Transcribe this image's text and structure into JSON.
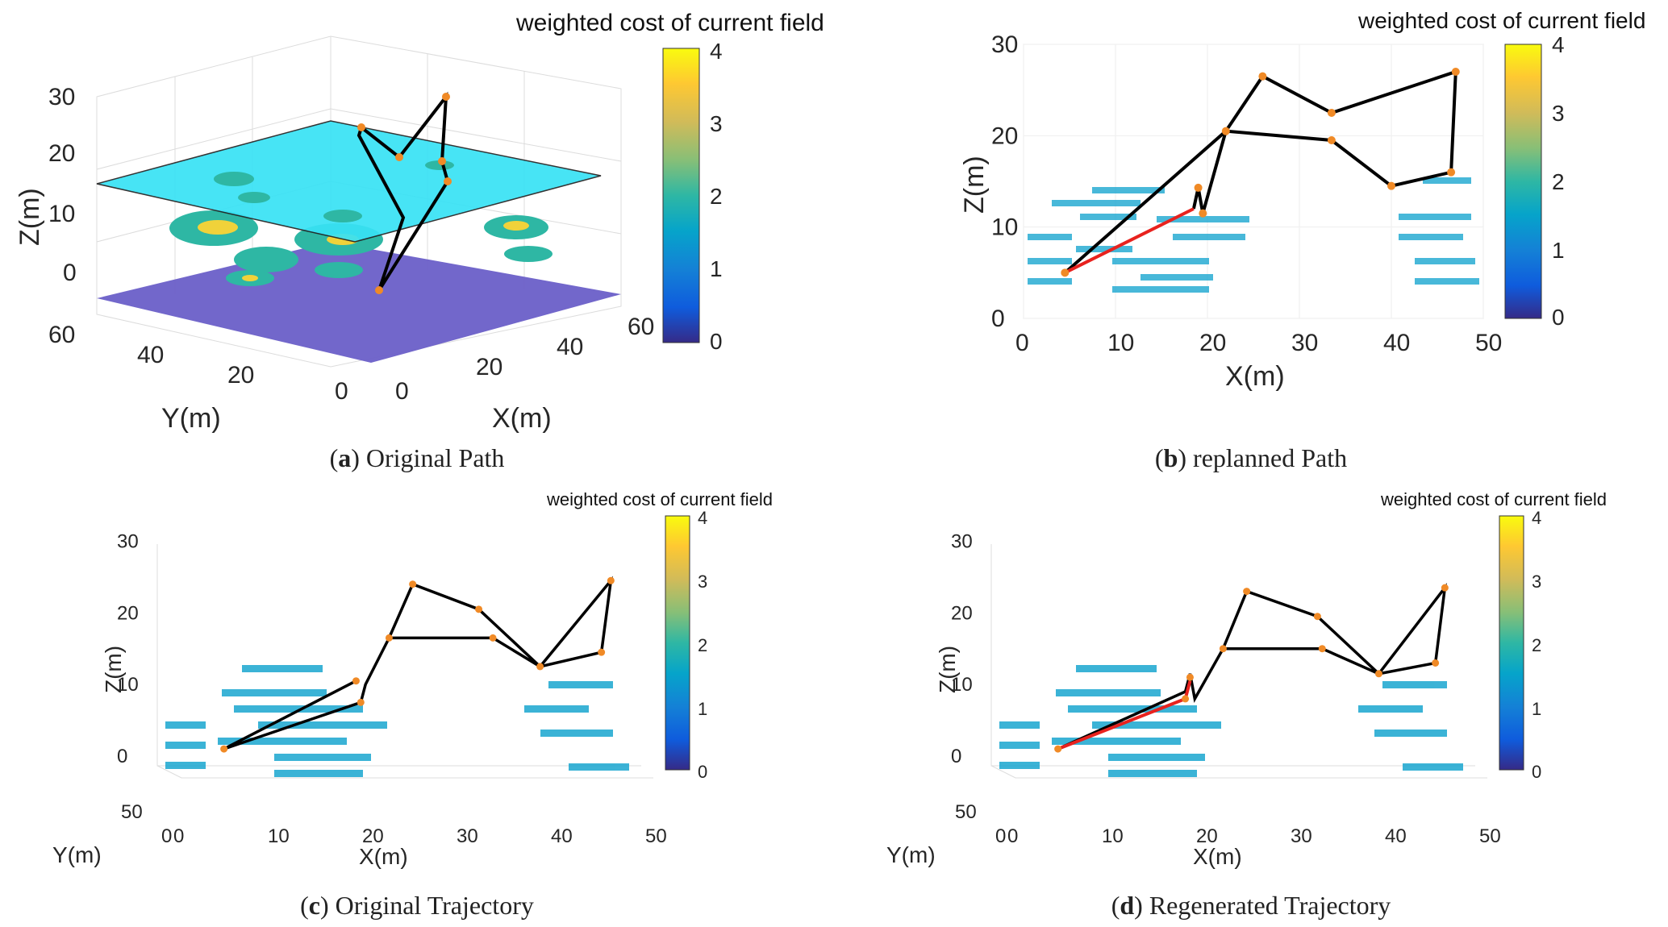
{
  "figure": {
    "colorbar_stops": [
      "#352a87",
      "#0f5cdd",
      "#1481d6",
      "#06a4ca",
      "#2eb7a4",
      "#87bf77",
      "#d1bb59",
      "#fec832",
      "#f9fb0e"
    ]
  },
  "chart_data": [
    {
      "id": "a",
      "type": "scatter",
      "subtype": "3d-path",
      "caption_letter": "a",
      "caption_text": "Original Path",
      "colorbar_title": "weighted cost of current field",
      "colorbar_ticks": [
        "0",
        "1",
        "2",
        "3",
        "4"
      ],
      "colorbar_range": [
        0,
        4
      ],
      "xlabel": "X(m)",
      "ylabel": "Y(m)",
      "zlabel": "Z(m)",
      "x_ticks": [
        "0",
        "20",
        "40",
        "60"
      ],
      "y_ticks": [
        "0",
        "20",
        "40",
        "60"
      ],
      "z_ticks": [
        "0",
        "10",
        "20",
        "30"
      ],
      "path_color": "#000000",
      "plane_color": "#38e2f5",
      "seabed_color": "#6a5fc8"
    },
    {
      "id": "b",
      "type": "scatter",
      "subtype": "2d-path",
      "caption_letter": "b",
      "caption_text": "replanned Path",
      "colorbar_title": "weighted cost of current field",
      "colorbar_ticks": [
        "0",
        "1",
        "2",
        "3",
        "4"
      ],
      "colorbar_range": [
        0,
        4
      ],
      "xlabel": "X(m)",
      "ylabel": "Z(m)",
      "xlim": [
        0,
        50
      ],
      "ylim": [
        0,
        30
      ],
      "x_ticks": [
        "0",
        "10",
        "20",
        "30",
        "40",
        "50"
      ],
      "y_ticks": [
        "0",
        "10",
        "20",
        "30"
      ],
      "path_black": [
        [
          4.5,
          5
        ],
        [
          22,
          20.5
        ],
        [
          26,
          26.5
        ],
        [
          33.5,
          22.5
        ],
        [
          47,
          27
        ],
        [
          46.5,
          16
        ],
        [
          40,
          14.5
        ],
        [
          33.5,
          19.5
        ],
        [
          22,
          20.5
        ],
        [
          19.5,
          11.5
        ],
        [
          19,
          14.3
        ],
        [
          18.5,
          12
        ]
      ],
      "path_red": [
        [
          4.5,
          5
        ],
        [
          18.5,
          12
        ]
      ],
      "waypoints": [
        [
          4.5,
          5
        ],
        [
          19,
          14.3
        ],
        [
          19.5,
          11.5
        ],
        [
          22,
          20.5
        ],
        [
          26,
          26.5
        ],
        [
          33.5,
          22.5
        ],
        [
          33.5,
          19.5
        ],
        [
          40,
          14.5
        ],
        [
          46.5,
          16
        ],
        [
          47,
          27
        ]
      ]
    },
    {
      "id": "c",
      "type": "line",
      "subtype": "3d-trajectory",
      "caption_letter": "c",
      "caption_text": "Original Trajectory",
      "colorbar_title": "weighted cost of current field",
      "colorbar_ticks": [
        "0",
        "1",
        "2",
        "3",
        "4"
      ],
      "colorbar_range": [
        0,
        4
      ],
      "xlabel": "X(m)",
      "ylabel": "Y(m)",
      "zlabel": "Z(m)",
      "xlim": [
        0,
        50
      ],
      "zlim": [
        0,
        30
      ],
      "x_ticks": [
        "0",
        "10",
        "20",
        "30",
        "40",
        "50"
      ],
      "y_ticks": [
        "0",
        "50"
      ],
      "z_ticks": [
        "0",
        "10",
        "20",
        "30"
      ],
      "trajectory_black": [
        [
          4.5,
          1
        ],
        [
          18.5,
          10.5
        ],
        [
          4.5,
          1
        ],
        [
          19,
          7.5
        ],
        [
          19.5,
          10
        ],
        [
          22,
          16.5
        ],
        [
          24.5,
          24
        ],
        [
          31.5,
          20.5
        ],
        [
          38,
          12.5
        ],
        [
          44.5,
          14.5
        ],
        [
          45.5,
          24.5
        ],
        [
          38,
          12.5
        ],
        [
          33,
          16.5
        ],
        [
          22,
          16.5
        ]
      ],
      "trajectory_red": [],
      "waypoints": [
        [
          4.5,
          1
        ],
        [
          18.5,
          10.5
        ],
        [
          19,
          7.5
        ],
        [
          22,
          16.5
        ],
        [
          24.5,
          24
        ],
        [
          31.5,
          20.5
        ],
        [
          33,
          16.5
        ],
        [
          38,
          12.5
        ],
        [
          44.5,
          14.5
        ],
        [
          45.5,
          24.5
        ]
      ]
    },
    {
      "id": "d",
      "type": "line",
      "subtype": "3d-trajectory",
      "caption_letter": "d",
      "caption_text": "Regenerated Trajectory",
      "colorbar_title": "weighted cost of current field",
      "colorbar_ticks": [
        "0",
        "1",
        "2",
        "3",
        "4"
      ],
      "colorbar_range": [
        0,
        4
      ],
      "xlabel": "X(m)",
      "ylabel": "Y(m)",
      "zlabel": "Z(m)",
      "xlim": [
        0,
        50
      ],
      "zlim": [
        0,
        30
      ],
      "x_ticks": [
        "0",
        "10",
        "20",
        "30",
        "40",
        "50"
      ],
      "y_ticks": [
        "0",
        "50"
      ],
      "z_ticks": [
        "0",
        "10",
        "20",
        "30"
      ],
      "trajectory_black": [
        [
          4.5,
          1
        ],
        [
          18,
          9
        ],
        [
          18.5,
          11.5
        ],
        [
          19,
          8
        ],
        [
          22,
          15
        ],
        [
          24.5,
          23
        ],
        [
          32,
          19.5
        ],
        [
          38.5,
          11.5
        ],
        [
          44.5,
          13
        ],
        [
          45.5,
          23.5
        ],
        [
          38.5,
          11.5
        ],
        [
          32.5,
          15
        ],
        [
          22,
          15
        ]
      ],
      "trajectory_red": [
        [
          4.5,
          1
        ],
        [
          18,
          8
        ],
        [
          18.5,
          10.5
        ]
      ],
      "waypoints": [
        [
          4.5,
          1
        ],
        [
          18,
          8
        ],
        [
          18.5,
          11
        ],
        [
          22,
          15
        ],
        [
          24.5,
          23
        ],
        [
          32,
          19.5
        ],
        [
          32.5,
          15
        ],
        [
          38.5,
          11.5
        ],
        [
          44.5,
          13
        ],
        [
          45.5,
          23.5
        ]
      ]
    }
  ]
}
